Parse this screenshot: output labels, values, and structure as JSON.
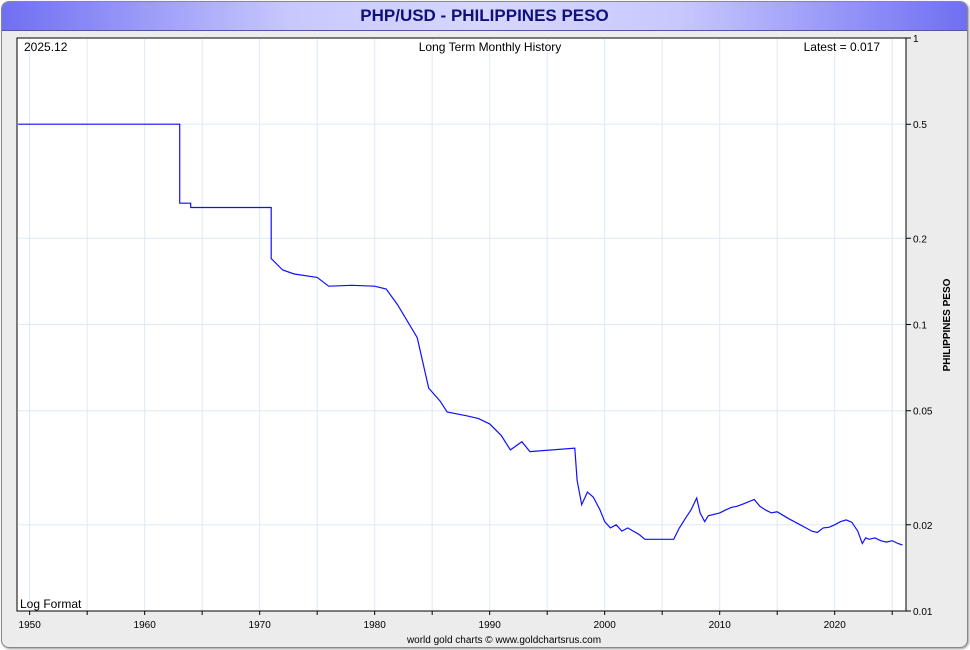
{
  "title": "PHP/USD - PHILIPPINES PESO",
  "chart_data": {
    "type": "line",
    "title": "Long Term Monthly History",
    "date_label": "2025.12",
    "latest_label": "Latest = 0.017",
    "scale_label": "Log Format",
    "ylabel": "PHILIPPINES PESO",
    "xlabel": "",
    "footer": "world gold charts © www.goldchartsrus.com",
    "xlim": [
      1948.9,
      2026.2
    ],
    "ylim": [
      0.01,
      1
    ],
    "yscale": "log",
    "x_ticks": [
      "1950",
      "1960",
      "1970",
      "1980",
      "1990",
      "2000",
      "2010",
      "2020"
    ],
    "y_ticks": [
      "1",
      "0.5",
      "0.2",
      "0.1",
      "0.05",
      "0.02",
      "0.01"
    ],
    "grid": true,
    "series": [
      {
        "name": "PHP/USD",
        "color": "#1010ff",
        "step": true,
        "x": [
          1949,
          1962.9,
          1963.05,
          1964,
          1970.8,
          1971,
          1972,
          1973,
          1975,
          1976,
          1978,
          1980,
          1981,
          1982,
          1983.7,
          1984.7,
          1985.7,
          1986.3,
          1988,
          1989,
          1990,
          1991,
          1991.8,
          1992.8,
          1993.5,
          1997.4,
          1997.6,
          1998,
          1998.5,
          1999,
          1999.6,
          2000,
          2000.5,
          2001,
          2001.5,
          2002,
          2003,
          2003.5,
          2004,
          2005,
          2006,
          2006.5,
          2007,
          2007.5,
          2008,
          2008.3,
          2008.7,
          2009,
          2010,
          2010.5,
          2011,
          2011.5,
          2012,
          2013,
          2013.5,
          2014,
          2014.5,
          2015,
          2016,
          2016.5,
          2017,
          2017.5,
          2018,
          2018.5,
          2019,
          2019.5,
          2020,
          2020.5,
          2021,
          2021.5,
          2022,
          2022.4,
          2022.7,
          2023,
          2023.5,
          2024,
          2024.5,
          2025,
          2025.5,
          2025.9
        ],
        "y": [
          0.5,
          0.5,
          0.265,
          0.256,
          0.256,
          0.17,
          0.155,
          0.15,
          0.146,
          0.136,
          0.137,
          0.136,
          0.133,
          0.117,
          0.09,
          0.06,
          0.054,
          0.0495,
          0.048,
          0.047,
          0.045,
          0.041,
          0.0365,
          0.039,
          0.036,
          0.037,
          0.0286,
          0.0235,
          0.026,
          0.025,
          0.0225,
          0.0205,
          0.0195,
          0.02,
          0.019,
          0.0195,
          0.0185,
          0.0178,
          0.0178,
          0.0178,
          0.0178,
          0.0195,
          0.021,
          0.0225,
          0.0248,
          0.022,
          0.0205,
          0.0215,
          0.022,
          0.0225,
          0.023,
          0.0232,
          0.0236,
          0.0245,
          0.0232,
          0.0225,
          0.022,
          0.0222,
          0.021,
          0.0205,
          0.02,
          0.0195,
          0.019,
          0.0188,
          0.0195,
          0.0196,
          0.02,
          0.0205,
          0.0208,
          0.0204,
          0.019,
          0.0172,
          0.018,
          0.0178,
          0.018,
          0.0176,
          0.0174,
          0.0176,
          0.0172,
          0.017
        ]
      }
    ]
  }
}
